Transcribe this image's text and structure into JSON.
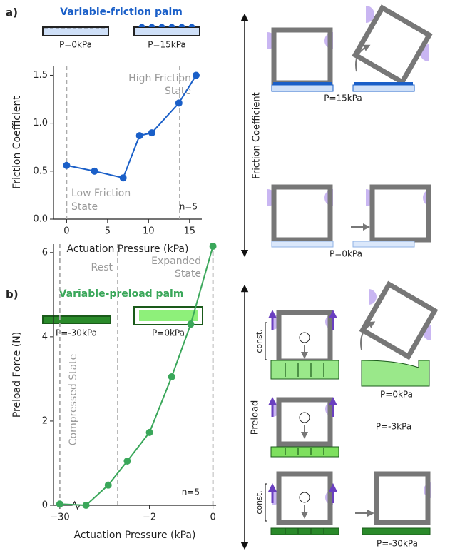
{
  "chart_data": [
    {
      "type": "line",
      "panel": "a)",
      "title": "Variable-friction palm",
      "color": "#1a5fc8",
      "icon_labels": [
        "P=0kPa",
        "P=15kPa"
      ],
      "x_label": "Actuation Pressure (kPa)",
      "y_label": "Friction Coefficient",
      "x": [
        0,
        3.4,
        6.9,
        8.9,
        10.4,
        13.7,
        15.8
      ],
      "values": [
        0.56,
        0.5,
        0.43,
        0.87,
        0.9,
        1.21,
        1.5
      ],
      "xlim": [
        -1.6,
        16.5
      ],
      "ylim": [
        0,
        1.6
      ],
      "xticks": [
        0,
        5,
        10,
        15
      ],
      "yticks": [
        {
          "value": 0,
          "label": "0.0"
        },
        0.5,
        {
          "value": 1,
          "label": "1.0"
        },
        1.5
      ],
      "vlines": [
        0,
        13.8
      ],
      "annotations": [
        [
          "High Friction",
          "State"
        ],
        [
          "Low Friction",
          "State"
        ]
      ],
      "note": "n=5"
    },
    {
      "type": "line",
      "panel": "b)",
      "title": "Variable-preload palm",
      "color": "#3aa75a",
      "icon_labels": [
        "P=-30kPa",
        "P=0kPa"
      ],
      "x_label": "Actuation Pressure (kPa)",
      "y_label": "Preload Force (N)",
      "x": [
        -30,
        -4,
        -3.3,
        -2.7,
        -2,
        -1.3,
        -0.7,
        0
      ],
      "values": [
        0.03,
        0,
        0.48,
        1.05,
        1.73,
        3.05,
        4.3,
        6.15
      ],
      "xlim": [
        -30.2,
        0.1
      ],
      "xbreak": [
        -29.6,
        -4.2
      ],
      "ylim": [
        0,
        6.2
      ],
      "xticks": [
        {
          "value": -30,
          "label": "−30"
        },
        {
          "value": -2,
          "label": "−2"
        },
        0
      ],
      "yticks": [
        0,
        2,
        4,
        6
      ],
      "vlines": [
        -30,
        -3,
        0
      ],
      "annotations": [
        [
          "Compressed State"
        ],
        [
          "Rest"
        ],
        [
          "Expanded",
          "State"
        ]
      ],
      "note": "n=5"
    }
  ],
  "diagrams": {
    "a": {
      "axis_label": "Friction Coefficient",
      "labels": [
        "P=15kPa",
        "P=0kPa"
      ]
    },
    "b": {
      "axis_label": "Preload",
      "labels": [
        "const.",
        "P=0kPa",
        "P=-3kPa",
        "const.",
        "P=-30kPa"
      ]
    }
  }
}
